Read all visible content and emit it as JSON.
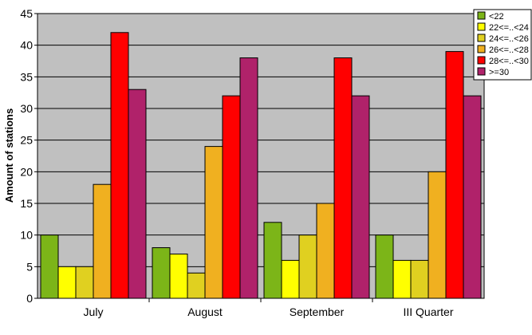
{
  "chart_data": {
    "type": "bar",
    "title": "",
    "xlabel": "",
    "ylabel": "Amount of stations",
    "ylim": [
      0,
      45
    ],
    "yticks": [
      0,
      5,
      10,
      15,
      20,
      25,
      30,
      35,
      40,
      45
    ],
    "grid": true,
    "legend_position": "top-right",
    "categories": [
      "July",
      "August",
      "September",
      "III Quarter"
    ],
    "series": [
      {
        "name": "<22",
        "color": "#7cb518",
        "values": [
          10,
          8,
          12,
          10
        ]
      },
      {
        "name": "22<=..<24",
        "color": "#ffff00",
        "values": [
          5,
          7,
          6,
          6
        ]
      },
      {
        "name": "24<=..<26",
        "color": "#e0d020",
        "values": [
          5,
          4,
          10,
          6
        ]
      },
      {
        "name": "26<=..<28",
        "color": "#f0b020",
        "values": [
          18,
          24,
          15,
          20
        ]
      },
      {
        "name": "28<=..<30",
        "color": "#ff0000",
        "values": [
          42,
          32,
          38,
          39
        ]
      },
      {
        "name": ">=30",
        "color": "#b0226a",
        "values": [
          33,
          38,
          32,
          32
        ]
      }
    ],
    "plot_background": "#c0c0c0"
  }
}
